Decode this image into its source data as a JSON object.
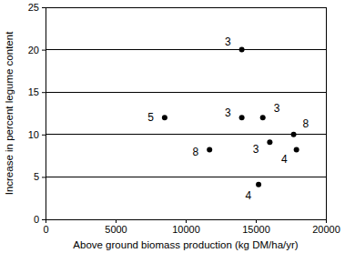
{
  "chart_data": {
    "type": "scatter",
    "x_label": "Above ground biomass production (kg DM/ha/yr)",
    "y_label": "Increase in percent legume content",
    "x": [
      8500,
      11700,
      14000,
      14000,
      15500,
      16000,
      15200,
      17700,
      17900
    ],
    "y": [
      12,
      8.2,
      20,
      12,
      12,
      9.1,
      4.1,
      10,
      8.2
    ],
    "point_labels": [
      "5",
      "8",
      "3",
      "3",
      "3",
      "3",
      "4",
      "8",
      "4"
    ],
    "xlim": [
      0,
      20000
    ],
    "xticks": [
      0,
      5000,
      10000,
      15000,
      20000
    ],
    "ylim": [
      0,
      25
    ],
    "yticks": [
      0,
      5,
      10,
      15,
      20,
      25
    ],
    "grid": true,
    "color": "#000000",
    "marker": "circle"
  }
}
